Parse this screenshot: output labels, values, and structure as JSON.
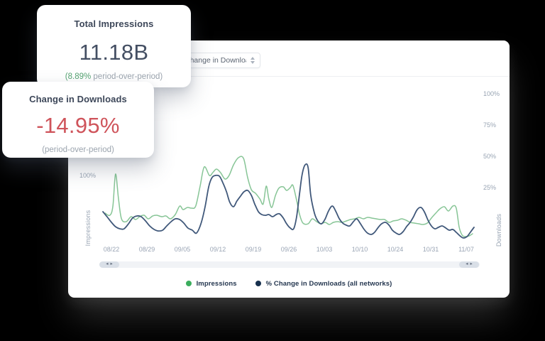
{
  "cards": {
    "impressions": {
      "title": "Total Impressions",
      "value": "11.18B",
      "sub_highlight": "(8.89%",
      "sub_rest": " period-over-period)"
    },
    "downloads": {
      "title": "Change in Downloads",
      "value": "-14.95%",
      "sub": "(period-over-period)"
    }
  },
  "panel": {
    "dropdown": {
      "value": "Change in Downloads"
    },
    "scrollbar": {
      "left_arrow": "◂",
      "right_arrow": "▸"
    }
  },
  "colors": {
    "impressions_line": "#87c596",
    "downloads_line": "#40587a",
    "legend_impressions_dot": "#3bad5d",
    "legend_downloads_dot": "#17304e",
    "positive_text": "#54a271",
    "negative_text": "#cf545b",
    "axis_text": "#98a4b3"
  },
  "chart_data": {
    "type": "line",
    "title": "",
    "x_axis": {
      "tick_labels": [
        "08/22",
        "08/29",
        "09/05",
        "09/12",
        "09/19",
        "09/26",
        "10/03",
        "10/10",
        "10/24",
        "10/31",
        "11/07"
      ]
    },
    "y_axis_left": {
      "label": "Impressions",
      "tick_labels": [
        "100%"
      ],
      "ticks_pct": [
        100
      ]
    },
    "y_axis_right": {
      "label": "Downloads",
      "tick_labels": [
        "100%",
        "75%",
        "50%",
        "25%"
      ],
      "ticks_pct": [
        100,
        75,
        50,
        25
      ]
    },
    "legend": [
      {
        "label": "Impressions",
        "dot_color": "#3bad5d"
      },
      {
        "label": "% Change in Downloads (all networks)",
        "dot_color": "#17304e"
      }
    ],
    "series": [
      {
        "name": "Impressions",
        "axis": "left",
        "unit": "%",
        "color": "#87c596",
        "stroke_width": 1.5,
        "points_pct": [
          [
            0.006,
            44.3
          ],
          [
            0.019,
            40.9
          ],
          [
            0.027,
            55.7
          ],
          [
            0.034,
            106.8
          ],
          [
            0.042,
            67
          ],
          [
            0.05,
            35.2
          ],
          [
            0.063,
            30.7
          ],
          [
            0.076,
            38.6
          ],
          [
            0.088,
            34.1
          ],
          [
            0.099,
            38.6
          ],
          [
            0.111,
            40.9
          ],
          [
            0.122,
            35.2
          ],
          [
            0.134,
            39.8
          ],
          [
            0.145,
            40.9
          ],
          [
            0.159,
            38.6
          ],
          [
            0.17,
            39.8
          ],
          [
            0.182,
            35.2
          ],
          [
            0.195,
            42
          ],
          [
            0.207,
            55.7
          ],
          [
            0.216,
            50
          ],
          [
            0.228,
            53.4
          ],
          [
            0.239,
            52.3
          ],
          [
            0.25,
            55.7
          ],
          [
            0.262,
            87.5
          ],
          [
            0.273,
            118.2
          ],
          [
            0.287,
            104.5
          ],
          [
            0.296,
            109.1
          ],
          [
            0.306,
            114.8
          ],
          [
            0.317,
            109.1
          ],
          [
            0.329,
            98.9
          ],
          [
            0.34,
            104.5
          ],
          [
            0.352,
            121.6
          ],
          [
            0.365,
            133
          ],
          [
            0.379,
            131.8
          ],
          [
            0.39,
            101.1
          ],
          [
            0.4,
            81.8
          ],
          [
            0.411,
            76.1
          ],
          [
            0.423,
            67
          ],
          [
            0.432,
            59.1
          ],
          [
            0.44,
            87.5
          ],
          [
            0.447,
            67
          ],
          [
            0.455,
            53.4
          ],
          [
            0.465,
            72.7
          ],
          [
            0.474,
            84.1
          ],
          [
            0.486,
            86.4
          ],
          [
            0.495,
            80.7
          ],
          [
            0.505,
            85.2
          ],
          [
            0.512,
            88.6
          ],
          [
            0.522,
            64.8
          ],
          [
            0.53,
            42
          ],
          [
            0.539,
            28.4
          ],
          [
            0.553,
            27.3
          ],
          [
            0.564,
            35.2
          ],
          [
            0.576,
            30.7
          ],
          [
            0.587,
            27.3
          ],
          [
            0.599,
            29.5
          ],
          [
            0.61,
            26.1
          ],
          [
            0.621,
            29.5
          ],
          [
            0.633,
            30.7
          ],
          [
            0.644,
            29.5
          ],
          [
            0.656,
            31.8
          ],
          [
            0.667,
            34.1
          ],
          [
            0.679,
            35.2
          ],
          [
            0.69,
            37.5
          ],
          [
            0.702,
            35.2
          ],
          [
            0.713,
            37.5
          ],
          [
            0.725,
            36.4
          ],
          [
            0.736,
            35.2
          ],
          [
            0.748,
            34.1
          ],
          [
            0.759,
            34.1
          ],
          [
            0.771,
            29.5
          ],
          [
            0.782,
            31.8
          ],
          [
            0.794,
            33
          ],
          [
            0.805,
            35.2
          ],
          [
            0.817,
            33
          ],
          [
            0.828,
            29.5
          ],
          [
            0.839,
            28.4
          ],
          [
            0.851,
            27.3
          ],
          [
            0.862,
            26.1
          ],
          [
            0.874,
            28.4
          ],
          [
            0.885,
            36.4
          ],
          [
            0.897,
            44.3
          ],
          [
            0.908,
            51.1
          ],
          [
            0.92,
            54.5
          ],
          [
            0.931,
            47.7
          ],
          [
            0.943,
            55.7
          ],
          [
            0.952,
            52.3
          ],
          [
            0.96,
            21.6
          ],
          [
            0.968,
            9.1
          ],
          [
            0.977,
            6.8
          ],
          [
            0.987,
            8
          ],
          [
            0.996,
            11.4
          ]
        ]
      },
      {
        "name": "% Change in Downloads (all networks)",
        "axis": "right",
        "unit": "%",
        "color": "#40587a",
        "stroke_width": 1.8,
        "points_pct": [
          [
            0,
            5.7
          ],
          [
            0.011,
            1.7
          ],
          [
            0.023,
            -2.8
          ],
          [
            0.034,
            -6.3
          ],
          [
            0.046,
            -8
          ],
          [
            0.057,
            -8
          ],
          [
            0.069,
            -4
          ],
          [
            0.08,
            0.6
          ],
          [
            0.092,
            2.3
          ],
          [
            0.103,
            1.7
          ],
          [
            0.115,
            -1.7
          ],
          [
            0.126,
            -5.7
          ],
          [
            0.138,
            -8.5
          ],
          [
            0.149,
            -9.7
          ],
          [
            0.161,
            -9.1
          ],
          [
            0.172,
            -5.7
          ],
          [
            0.184,
            -2.3
          ],
          [
            0.195,
            0
          ],
          [
            0.207,
            -0.6
          ],
          [
            0.218,
            -3.4
          ],
          [
            0.229,
            -7.4
          ],
          [
            0.241,
            -9.1
          ],
          [
            0.252,
            -11.4
          ],
          [
            0.264,
            -4
          ],
          [
            0.275,
            9.1
          ],
          [
            0.285,
            25.6
          ],
          [
            0.294,
            33
          ],
          [
            0.304,
            34.7
          ],
          [
            0.314,
            34.1
          ],
          [
            0.323,
            29
          ],
          [
            0.333,
            21.6
          ],
          [
            0.342,
            13.1
          ],
          [
            0.352,
            9.7
          ],
          [
            0.361,
            14.2
          ],
          [
            0.371,
            18.2
          ],
          [
            0.38,
            21.6
          ],
          [
            0.39,
            22.7
          ],
          [
            0.4,
            18.8
          ],
          [
            0.409,
            11.9
          ],
          [
            0.419,
            5.7
          ],
          [
            0.428,
            3.4
          ],
          [
            0.438,
            2.8
          ],
          [
            0.447,
            3.4
          ],
          [
            0.457,
            1.7
          ],
          [
            0.467,
            3.4
          ],
          [
            0.476,
            4
          ],
          [
            0.486,
            0.6
          ],
          [
            0.495,
            -4
          ],
          [
            0.505,
            -7.4
          ],
          [
            0.514,
            -8
          ],
          [
            0.522,
            1.7
          ],
          [
            0.53,
            20.5
          ],
          [
            0.537,
            35.8
          ],
          [
            0.545,
            43.2
          ],
          [
            0.553,
            40.9
          ],
          [
            0.56,
            18.8
          ],
          [
            0.57,
            4.5
          ],
          [
            0.579,
            -1.7
          ],
          [
            0.589,
            -4
          ],
          [
            0.599,
            0
          ],
          [
            0.608,
            6.3
          ],
          [
            0.618,
            10.2
          ],
          [
            0.627,
            6.3
          ],
          [
            0.637,
            0
          ],
          [
            0.646,
            -3.4
          ],
          [
            0.656,
            -5.1
          ],
          [
            0.665,
            -5.7
          ],
          [
            0.675,
            -2.3
          ],
          [
            0.684,
            0
          ],
          [
            0.694,
            -4
          ],
          [
            0.704,
            -8.5
          ],
          [
            0.713,
            -11.4
          ],
          [
            0.723,
            -12.5
          ],
          [
            0.732,
            -10.8
          ],
          [
            0.742,
            -6.8
          ],
          [
            0.751,
            -4
          ],
          [
            0.761,
            -2.8
          ],
          [
            0.771,
            -5.1
          ],
          [
            0.78,
            -9.1
          ],
          [
            0.79,
            -11.4
          ],
          [
            0.799,
            -12.5
          ],
          [
            0.809,
            -10.2
          ],
          [
            0.818,
            -6.3
          ],
          [
            0.828,
            -2.8
          ],
          [
            0.837,
            1.7
          ],
          [
            0.847,
            7.4
          ],
          [
            0.857,
            9.1
          ],
          [
            0.866,
            5.7
          ],
          [
            0.876,
            -1.1
          ],
          [
            0.885,
            -5.7
          ],
          [
            0.895,
            -8
          ],
          [
            0.904,
            -6.8
          ],
          [
            0.914,
            -5.7
          ],
          [
            0.924,
            -7.4
          ],
          [
            0.933,
            -9.1
          ],
          [
            0.943,
            -8.5
          ],
          [
            0.952,
            -10.8
          ],
          [
            0.962,
            -13.6
          ],
          [
            0.971,
            -15.3
          ],
          [
            0.981,
            -14.2
          ],
          [
            0.99,
            -10.8
          ],
          [
            1,
            -6.8
          ]
        ]
      }
    ],
    "layout_hints": {
      "grid": false,
      "legend_position": "bottom",
      "right_axis_range_pct": [
        -20,
        110
      ],
      "left_axis_range_pct": [
        -15,
        135
      ]
    }
  }
}
